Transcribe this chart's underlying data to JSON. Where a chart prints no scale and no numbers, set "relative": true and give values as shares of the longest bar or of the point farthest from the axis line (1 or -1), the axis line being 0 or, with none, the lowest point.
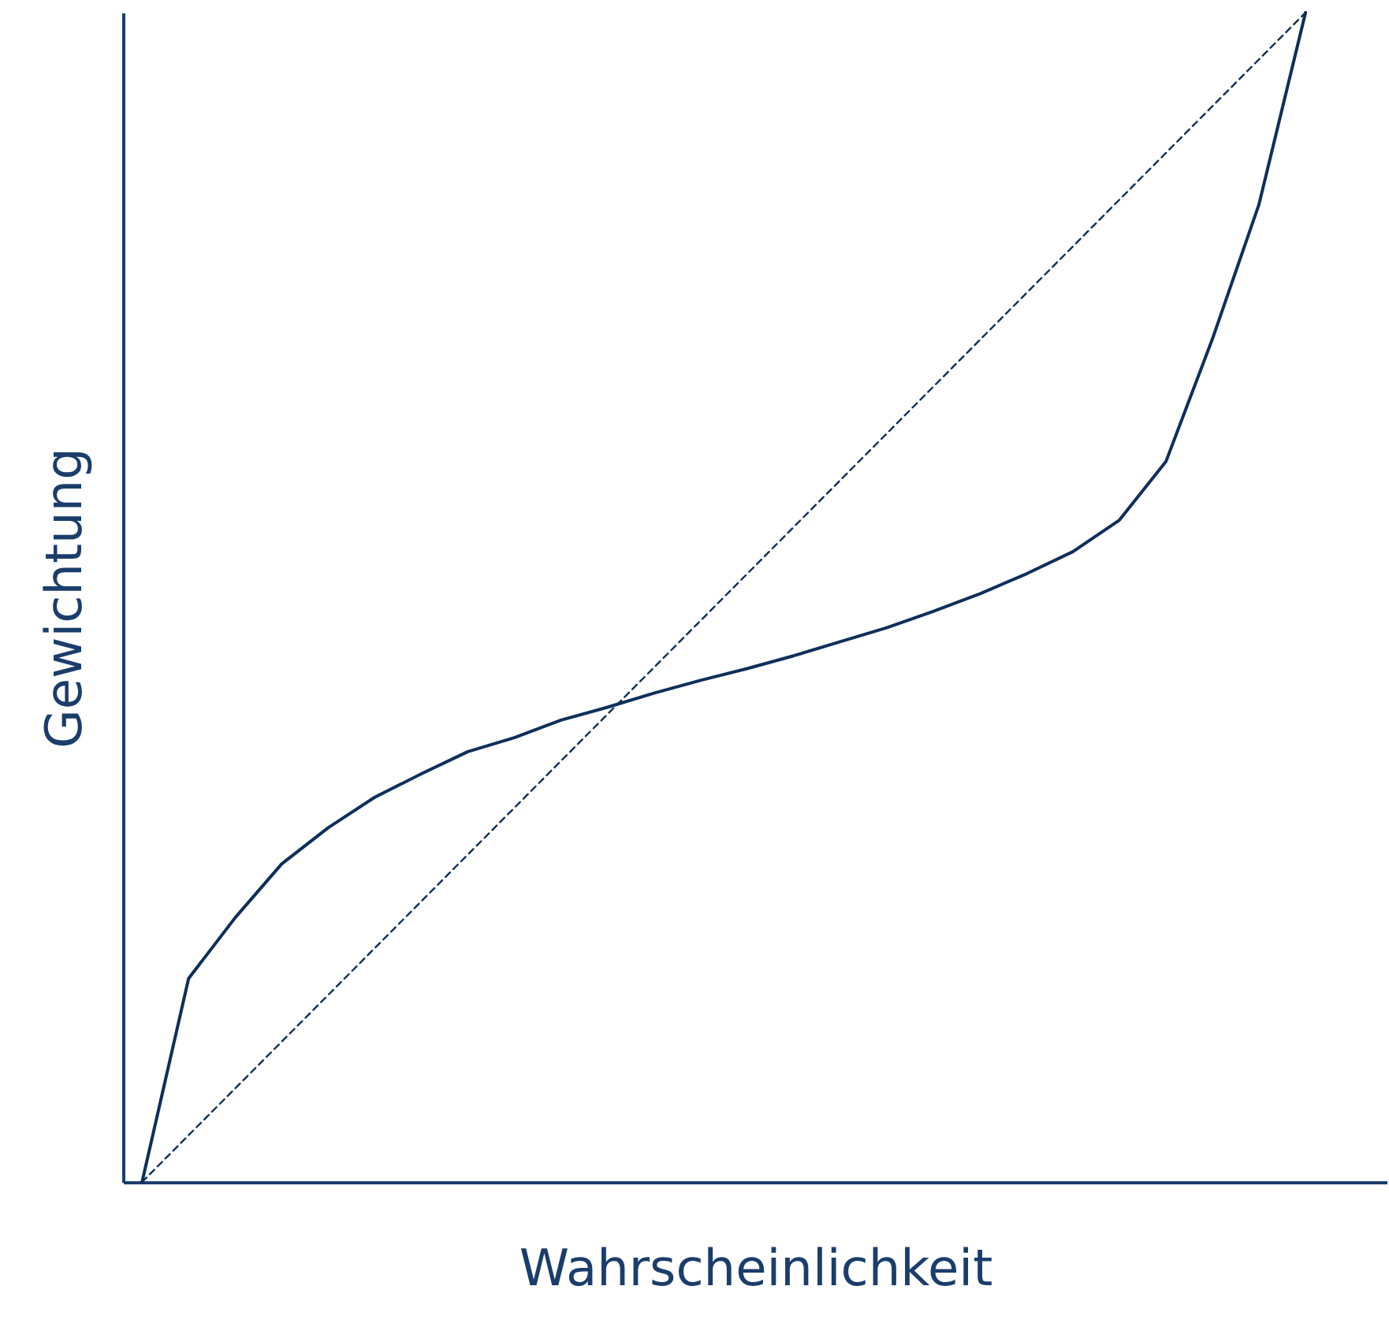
{
  "chart_data": {
    "type": "line",
    "relative": true,
    "xlabel": "Wahrscheinlichkeit",
    "ylabel": "Gewichtung",
    "grid": false,
    "marker": "none",
    "categories": [
      null,
      null,
      null,
      null,
      null,
      null,
      null,
      null,
      null,
      null,
      null,
      null,
      null,
      null,
      null,
      null,
      null,
      null,
      null,
      null,
      null,
      null,
      null,
      null,
      null,
      null
    ],
    "series": [
      {
        "color": "#0e2f5a",
        "line_style": "solid",
        "values": [
          0,
          0.174,
          0.226,
          0.272,
          0.303,
          0.329,
          0.349,
          0.368,
          0.38,
          0.395,
          0.406,
          0.418,
          0.429,
          0.439,
          0.45,
          0.462,
          0.474,
          0.488,
          0.503,
          0.52,
          0.539,
          0.566,
          0.616,
          0.721,
          0.836,
          1.0
        ]
      },
      {
        "color": "#0e2f5a",
        "line_style": "dashed",
        "values": [
          0,
          0.04,
          0.08,
          0.12,
          0.16,
          0.2,
          0.24,
          0.28,
          0.32,
          0.36,
          0.4,
          0.44,
          0.48,
          0.52,
          0.56,
          0.6,
          0.64,
          0.68,
          0.72,
          0.76,
          0.8,
          0.84,
          0.88,
          0.92,
          0.96,
          1.0
        ]
      }
    ]
  }
}
